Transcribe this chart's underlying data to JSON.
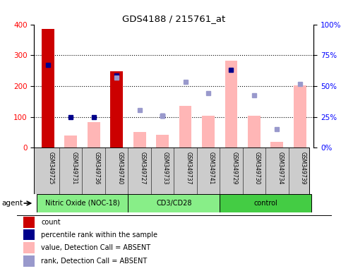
{
  "title": "GDS4188 / 215761_at",
  "categories": [
    "GSM349725",
    "GSM349731",
    "GSM349736",
    "GSM349740",
    "GSM349727",
    "GSM349733",
    "GSM349737",
    "GSM349741",
    "GSM349729",
    "GSM349730",
    "GSM349734",
    "GSM349739"
  ],
  "red_bars": [
    385,
    0,
    0,
    248,
    0,
    0,
    0,
    0,
    0,
    0,
    0,
    0
  ],
  "pink_bars": [
    0,
    40,
    82,
    0,
    50,
    42,
    135,
    103,
    283,
    103,
    18,
    203
  ],
  "blue_squares": [
    268,
    100,
    100,
    235,
    0,
    103,
    0,
    0,
    252,
    0,
    0,
    0
  ],
  "lavender_squares": [
    0,
    0,
    0,
    228,
    122,
    103,
    213,
    178,
    0,
    170,
    60,
    206
  ],
  "ylim_left": [
    0,
    400
  ],
  "ylim_right": [
    0,
    100
  ],
  "yticks_left": [
    0,
    100,
    200,
    300,
    400
  ],
  "yticks_right": [
    0,
    25,
    50,
    75,
    100
  ],
  "ytick_right_labels": [
    "0%",
    "25%",
    "50%",
    "75%",
    "100%"
  ],
  "bar_width": 0.55,
  "group_ranges": [
    [
      0,
      4
    ],
    [
      4,
      8
    ],
    [
      8,
      12
    ]
  ],
  "group_labels": [
    "Nitric Oxide (NOC-18)",
    "CD3/CD28",
    "control"
  ],
  "group_colors": [
    "#88ee88",
    "#88ee88",
    "#44cc44"
  ],
  "legend_colors": [
    "#cc0000",
    "#00008b",
    "#ffb6b6",
    "#9999cc"
  ],
  "legend_labels": [
    "count",
    "percentile rank within the sample",
    "value, Detection Call = ABSENT",
    "rank, Detection Call = ABSENT"
  ]
}
